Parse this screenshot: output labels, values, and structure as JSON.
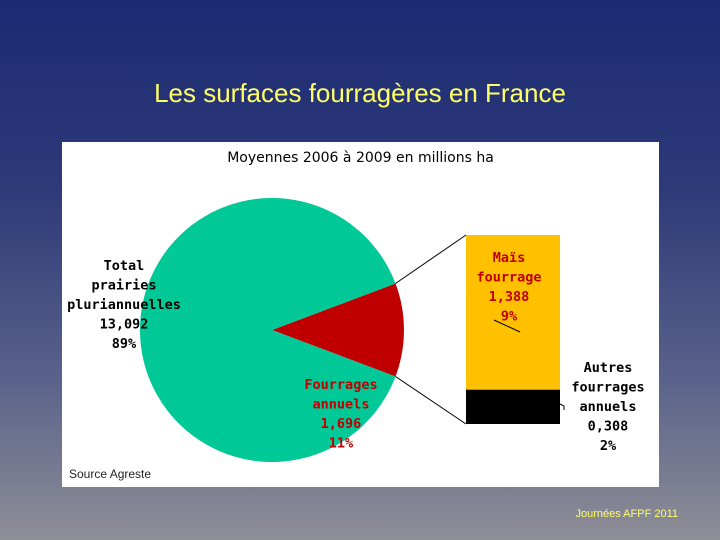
{
  "slide": {
    "title": "Les surfaces fourragères en France",
    "footer": "Journées AFPF 2011"
  },
  "chart_data": {
    "type": "pie",
    "title": "Moyennes 2006 à 2009 en millions ha",
    "source": "Source Agreste",
    "colors": {
      "prairies": "#00c896",
      "annuels": "#c00000",
      "mais": "#ffc000",
      "autres": "#000000"
    },
    "slices": [
      {
        "id": "prairies",
        "label_lines": [
          "Total",
          "prairies",
          "pluriannuelles",
          "13,092",
          "89%"
        ],
        "value": 13.092,
        "percent": 89
      },
      {
        "id": "annuels",
        "label_lines": [
          "Fourrages",
          "annuels",
          "1,696",
          "11%"
        ],
        "value": 1.696,
        "percent": 11
      }
    ],
    "breakdown_bar": {
      "of": "annuels",
      "segments": [
        {
          "id": "mais",
          "label_lines": [
            "Maïs",
            "fourrage",
            "1,388",
            "9%"
          ],
          "value": 1.388,
          "percent": 9
        },
        {
          "id": "autres",
          "label_lines": [
            "Autres",
            "fourrages",
            "annuels",
            "0,308",
            "2%"
          ],
          "value": 0.308,
          "percent": 2
        }
      ]
    }
  }
}
